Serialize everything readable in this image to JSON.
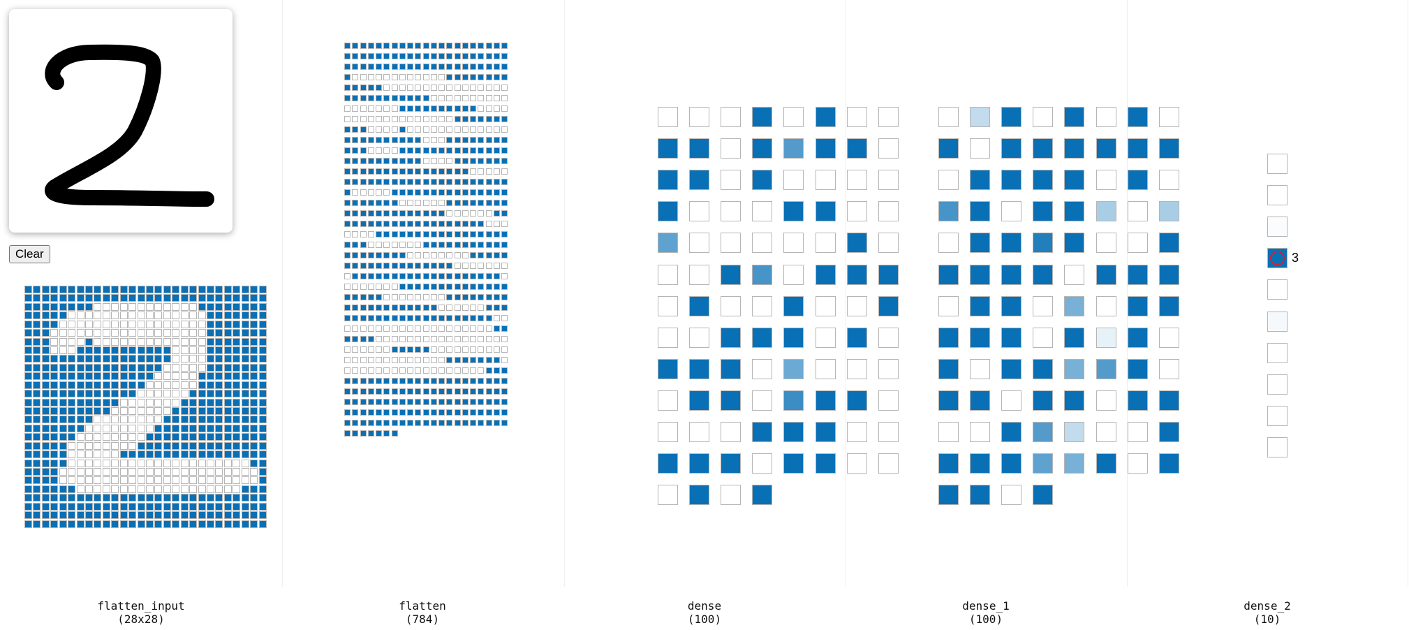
{
  "controls": {
    "clear_label": "Clear"
  },
  "colors": {
    "active": "#0a70b5",
    "inactive": "#ffffff",
    "cell_border": "#b5b5b5",
    "prediction_ring": "#d11f3a"
  },
  "prediction": {
    "label": "3",
    "output_index": 3
  },
  "layers": [
    {
      "name": "flatten_input",
      "shape": "(28x28)"
    },
    {
      "name": "flatten",
      "shape": "(784)"
    },
    {
      "name": "dense",
      "shape": "(100)"
    },
    {
      "name": "dense_1",
      "shape": "(100)"
    },
    {
      "name": "dense_2",
      "shape": "(10)"
    }
  ],
  "activations": {
    "flatten_input_rows": [
      "1111111111111111111111111111",
      "1111111111111111111111111111",
      "1111111100000000000011111111",
      "1111100000000000000001111111",
      "1111000000000000000001111111",
      "1110000000000000000001111111",
      "1110000100000000000001111111",
      "1110001111111111100001111111",
      "1111111111111111100001111111",
      "1111111111111111000001111111",
      "1111111111111110000011111111",
      "1111111111111100000011111111",
      "1111111111111000000111111111",
      "1111111111100000001111111111",
      "1111111111000000011111111111",
      "1111111100000000111111111111",
      "1111111000000001111111111111",
      "1111110000000011111111111111",
      "1111100000000111111111111111",
      "1111100000011111111111111111",
      "1111100000000000000000000011",
      "1111000000000000000000000001",
      "1111000000000000000000000001",
      "1111110000000000000000000111",
      "1111111111111111111111111111",
      "1111111111111111111111111111",
      "1111111111111111111111111111",
      "1111111111111111111111111111"
    ],
    "dense": [
      0,
      0,
      0,
      1,
      0,
      1,
      0,
      0,
      1,
      1,
      0,
      1,
      0.7,
      1,
      1,
      0,
      1,
      1,
      0,
      1,
      0,
      0,
      0,
      0,
      1,
      0,
      0,
      0,
      1,
      1,
      0,
      0,
      0.65,
      0,
      0,
      0,
      0,
      0,
      1,
      0,
      0,
      0,
      1,
      0.75,
      0,
      1,
      1,
      1,
      0,
      1,
      0,
      0,
      1,
      0,
      0,
      1,
      0,
      0,
      1,
      1,
      1,
      0,
      1,
      0,
      1,
      1,
      1,
      0,
      0.6,
      0,
      0,
      0,
      0,
      1,
      1,
      0,
      0.8,
      1,
      1,
      0,
      0,
      0,
      0,
      1,
      1,
      1,
      0,
      0,
      1,
      1,
      1,
      0,
      1,
      1,
      0,
      0,
      0,
      1,
      0,
      1
    ],
    "dense_1": [
      0,
      0.25,
      1,
      0,
      1,
      0,
      1,
      0,
      1,
      0,
      1,
      1,
      1,
      1,
      1,
      1,
      0,
      1,
      1,
      1,
      1,
      0,
      1,
      0,
      0.75,
      1,
      0,
      1,
      1,
      0.35,
      0,
      0.35,
      0,
      1,
      1,
      0.9,
      1,
      0,
      0,
      1,
      1,
      1,
      1,
      1,
      0,
      1,
      1,
      1,
      0,
      1,
      1,
      0,
      0.55,
      0,
      1,
      1,
      1,
      1,
      1,
      0,
      1,
      0.1,
      1,
      0,
      1,
      0,
      1,
      1,
      0.55,
      0.7,
      1,
      0,
      1,
      1,
      0,
      1,
      1,
      0,
      1,
      1,
      0,
      0,
      1,
      0.7,
      0.25,
      0,
      0,
      1,
      1,
      1,
      1,
      0.65,
      0.55,
      1,
      0,
      1,
      1,
      1,
      0,
      1
    ],
    "dense_2": [
      0,
      0,
      0.02,
      1,
      0,
      0.04,
      0,
      0,
      0,
      0
    ]
  }
}
